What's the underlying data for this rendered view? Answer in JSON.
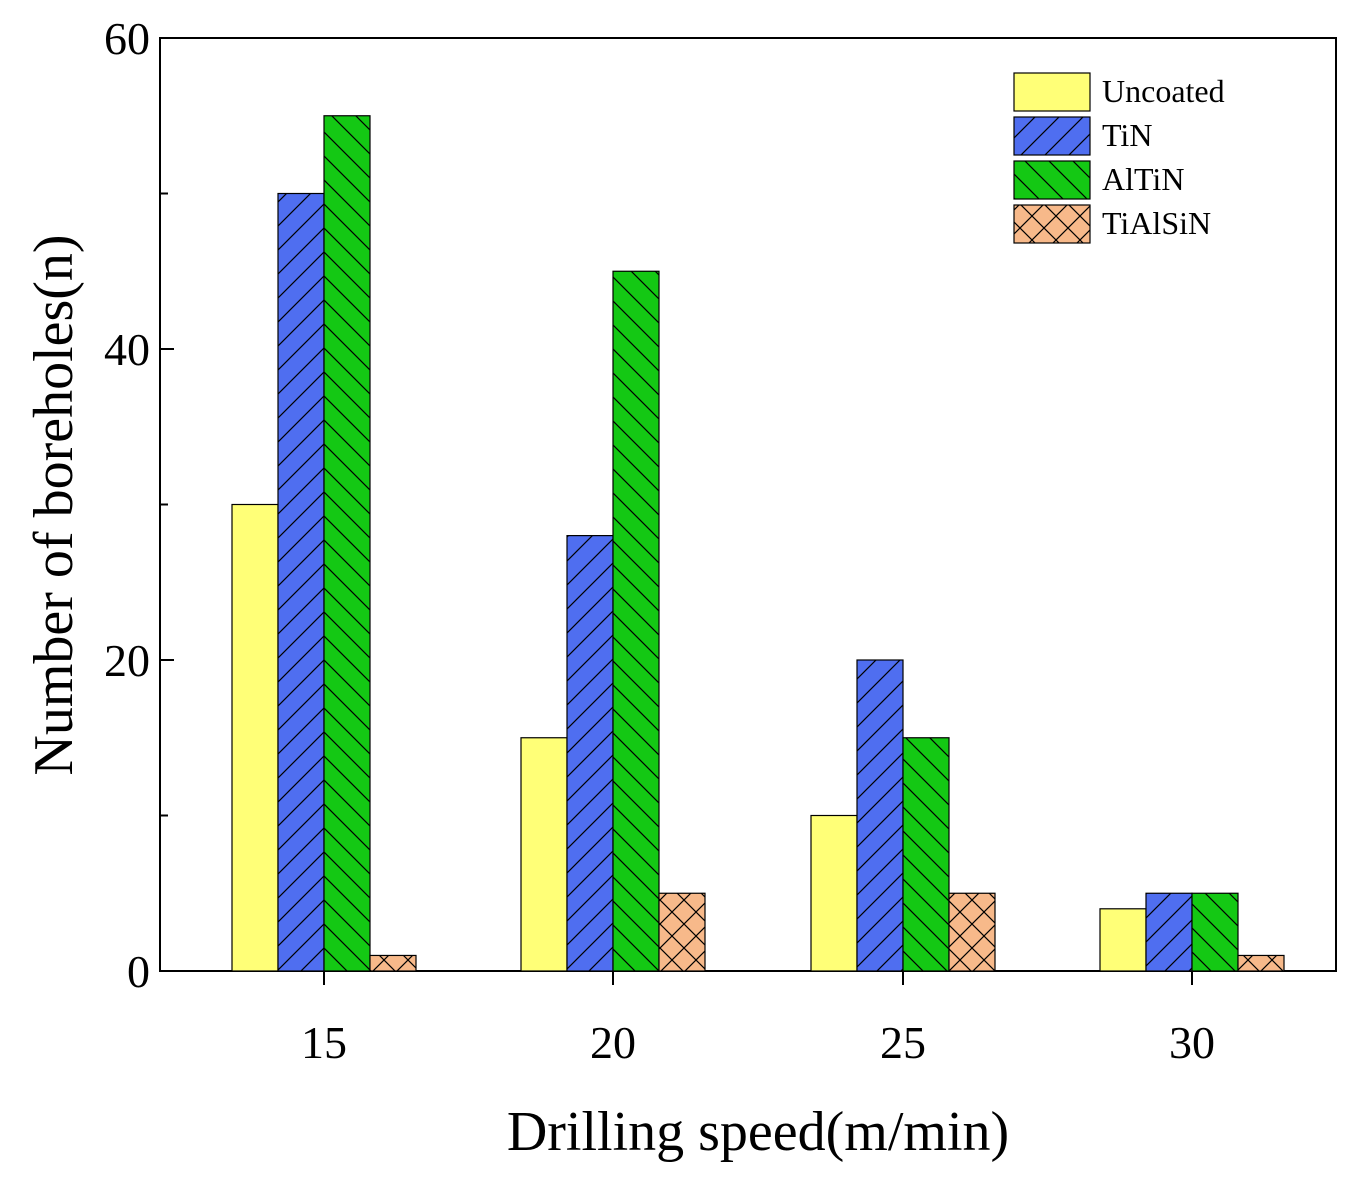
{
  "chart_data": {
    "type": "bar",
    "title": "",
    "xlabel": "Drilling speed(m/min)",
    "ylabel": "Number of boreholes(n)",
    "categories": [
      "15",
      "20",
      "25",
      "30"
    ],
    "ylim": [
      0,
      60
    ],
    "yticks": [
      "0",
      "20",
      "40",
      "60"
    ],
    "grid": false,
    "legend_position": "top-right",
    "series": [
      {
        "name": "Uncoated",
        "color": "#ffff77",
        "pattern": "none",
        "values": [
          30,
          15,
          10,
          4
        ]
      },
      {
        "name": "TiN",
        "color": "#4f6ef0",
        "pattern": "forward-diagonal",
        "values": [
          50,
          28,
          20,
          5
        ]
      },
      {
        "name": "AlTiN",
        "color": "#14c814",
        "pattern": "back-diagonal",
        "values": [
          55,
          45,
          15,
          5
        ]
      },
      {
        "name": "TiAlSiN",
        "color": "#f7b98a",
        "pattern": "crosshatch",
        "values": [
          1,
          5,
          5,
          1
        ]
      }
    ]
  }
}
